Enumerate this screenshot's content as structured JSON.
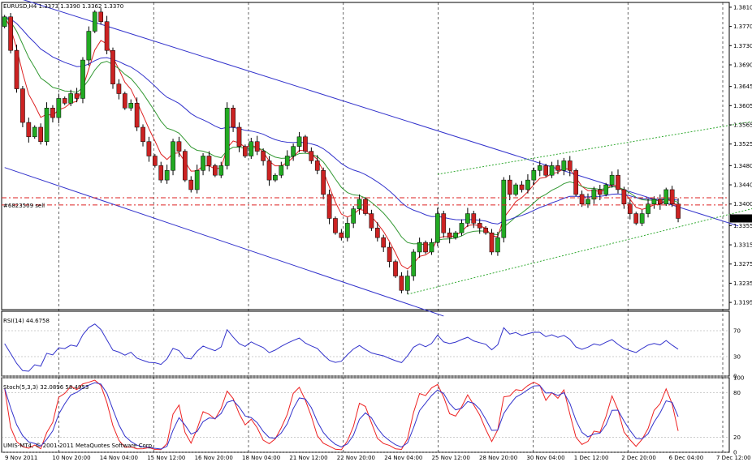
{
  "chart_data": [
    {
      "type": "candlestick",
      "title": "EURUSD,H4 1.3373 1.3390 1.3362 1.3370",
      "symbol": "EURUSD",
      "timeframe": "H4",
      "ohlc_header": [
        1.3373,
        1.339,
        1.3362,
        1.337
      ],
      "current_price": 1.337,
      "current_price_label": "1.3370",
      "order_label": "#6823509 sell",
      "order_lines": [
        1.3413,
        1.3398
      ],
      "ylim": [
        1.318,
        1.382
      ],
      "yticks": [
        "1.3810",
        "1.3770",
        "1.3730",
        "1.3690",
        "1.3645",
        "1.3605",
        "1.3565",
        "1.3525",
        "1.3480",
        "1.3440",
        "1.3400",
        "1.3355",
        "1.3315",
        "1.3275",
        "1.3235",
        "1.3195"
      ],
      "xticks": [
        "9 Nov 2011",
        "10 Nov 20:00",
        "14 Nov 04:00",
        "15 Nov 12:00",
        "16 Nov 20:00",
        "18 Nov 04:00",
        "21 Nov 12:00",
        "22 Nov 20:00",
        "24 Nov 04:00",
        "25 Nov 12:00",
        "28 Nov 20:00",
        "30 Nov 04:00",
        "1 Dec 12:00",
        "2 Dec 20:00",
        "6 Dec 04:00",
        "7 Dec 12:00"
      ],
      "closes": [
        1.379,
        1.372,
        1.364,
        1.357,
        1.354,
        1.356,
        1.353,
        1.36,
        1.358,
        1.362,
        1.361,
        1.363,
        1.362,
        1.37,
        1.376,
        1.38,
        1.378,
        1.372,
        1.365,
        1.363,
        1.36,
        1.361,
        1.356,
        1.353,
        1.35,
        1.348,
        1.345,
        1.347,
        1.353,
        1.351,
        1.345,
        1.343,
        1.347,
        1.35,
        1.348,
        1.346,
        1.348,
        1.36,
        1.356,
        1.352,
        1.35,
        1.353,
        1.351,
        1.349,
        1.345,
        1.346,
        1.348,
        1.35,
        1.352,
        1.354,
        1.351,
        1.349,
        1.347,
        1.342,
        1.337,
        1.334,
        1.333,
        1.336,
        1.339,
        1.341,
        1.338,
        1.335,
        1.333,
        1.331,
        1.328,
        1.325,
        1.322,
        1.325,
        1.33,
        1.332,
        1.33,
        1.332,
        1.338,
        1.334,
        1.333,
        1.334,
        1.336,
        1.338,
        1.336,
        1.335,
        1.334,
        1.33,
        1.333,
        1.345,
        1.342,
        1.344,
        1.343,
        1.345,
        1.347,
        1.348,
        1.346,
        1.348,
        1.347,
        1.349,
        1.347,
        1.342,
        1.34,
        1.341,
        1.343,
        1.342,
        1.344,
        1.346,
        1.343,
        1.34,
        1.338,
        1.336,
        1.338,
        1.34,
        1.341,
        1.34,
        1.343,
        1.34,
        1.337
      ],
      "indicators": [
        {
          "name": "RSI(14) 44.6758",
          "levels": [
            "70",
            "30",
            "0"
          ],
          "ylim": [
            0,
            100
          ]
        },
        {
          "name": "Stoch(5,3,3) 32.0896 58.4953",
          "levels": [
            "100",
            "80",
            "20",
            "0"
          ],
          "ylim": [
            0,
            100
          ]
        }
      ],
      "colors": {
        "bull": "#22aa22",
        "bear": "#cc2222",
        "channel": "#3333cc",
        "ma_fast": "#dd2222",
        "ma_mid": "#339933",
        "ma_slow": "#3333cc",
        "order": "#dd2222",
        "dotted": "#33aa33",
        "rsi": "#3333cc",
        "stoch_main": "#ee2222",
        "stoch_signal": "#3333cc"
      },
      "footer": "UMIS-MT4, © 2001-2011 MetaQuotes Software Corp."
    }
  ]
}
